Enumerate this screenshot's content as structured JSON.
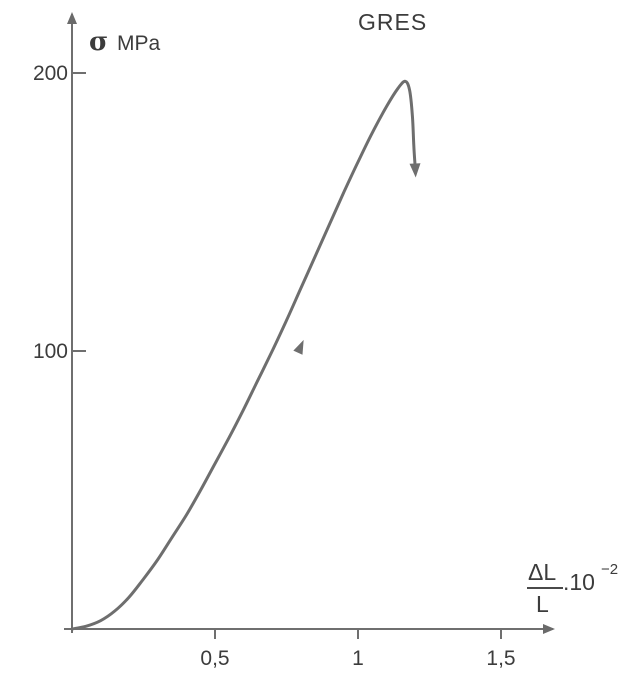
{
  "chart_data": {
    "type": "line",
    "title": "GRES",
    "ylabel": {
      "symbol": "σ",
      "unit": "MPa"
    },
    "xlabel": {
      "numerator": "ΔL",
      "denominator": "L",
      "factor": ".10",
      "exponent": "−2"
    },
    "xlim": [
      0,
      1.5
    ],
    "ylim": [
      0,
      200
    ],
    "x_ticks": [
      {
        "value": 0.5,
        "label": "0,5"
      },
      {
        "value": 1,
        "label": "1"
      },
      {
        "value": 1.5,
        "label": "1,5"
      }
    ],
    "y_ticks": [
      {
        "value": 100,
        "label": "100"
      },
      {
        "value": 200,
        "label": "200"
      }
    ],
    "grid": false,
    "series": [
      {
        "x": [
          0,
          0.05,
          0.1,
          0.15,
          0.2,
          0.25,
          0.3,
          0.35,
          0.4,
          0.45,
          0.5,
          0.55,
          0.6,
          0.65,
          0.7,
          0.75,
          0.8,
          0.85,
          0.9,
          0.95,
          1.0,
          1.05,
          1.1,
          1.14,
          1.165,
          1.18,
          1.19,
          1.195,
          1.2
        ],
        "y": [
          0,
          1,
          3,
          6.5,
          11.5,
          18,
          25,
          33,
          41,
          50,
          59.5,
          69,
          79,
          89.5,
          100,
          111,
          122.5,
          134,
          145.5,
          157,
          168,
          178.5,
          188,
          194.5,
          197,
          194,
          185,
          174,
          166
        ]
      }
    ],
    "annotations": [
      {
        "type": "direction-arrow",
        "x": 0.81,
        "y": 104
      },
      {
        "type": "end-arrow"
      }
    ]
  }
}
